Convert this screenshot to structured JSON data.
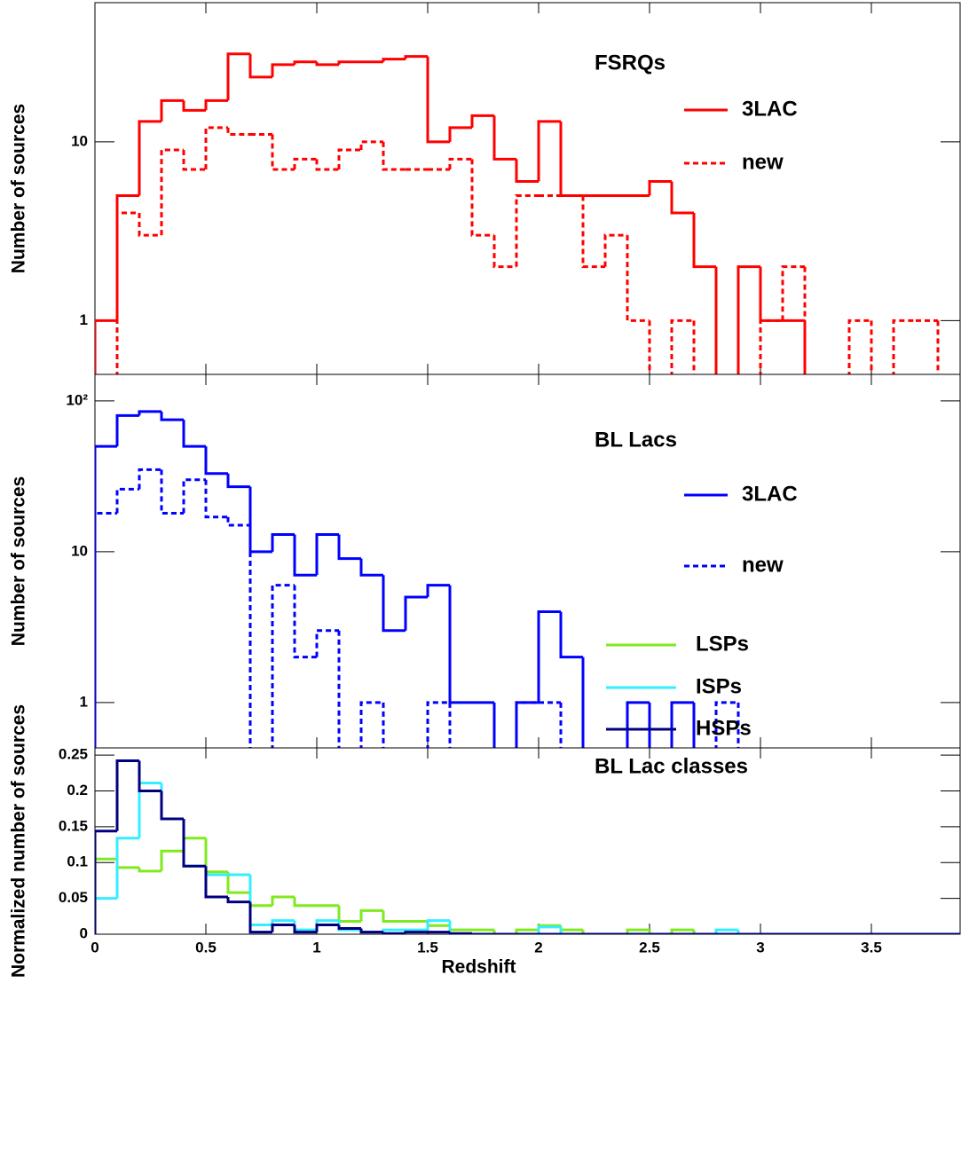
{
  "chart_data": [
    {
      "type": "histogram",
      "ylabel": "Number of sources",
      "legend_title": "FSRQs",
      "log_y": true,
      "xlim": [
        0,
        3.9
      ],
      "ylim": [
        0.5,
        60
      ],
      "yticks": [
        1,
        10
      ],
      "bins": [
        0,
        0.1,
        0.2,
        0.3,
        0.4,
        0.5,
        0.6,
        0.7,
        0.8,
        0.9,
        1,
        1.1,
        1.2,
        1.3,
        1.4,
        1.5,
        1.6,
        1.7,
        1.8,
        1.9,
        2,
        2.1,
        2.2,
        2.3,
        2.4,
        2.5,
        2.6,
        2.7,
        2.8,
        2.9,
        3,
        3.1,
        3.2,
        3.3,
        3.4,
        3.5,
        3.6,
        3.7,
        3.8,
        3.9
      ],
      "series": [
        {
          "name": "3LAC",
          "color": "#ff0000",
          "dashed": false,
          "values": [
            1,
            5,
            13,
            17,
            15,
            17,
            31,
            23,
            27,
            28,
            27,
            28,
            28,
            29,
            30,
            10,
            12,
            14,
            8,
            6,
            13,
            5,
            5,
            5,
            5,
            6,
            4,
            2,
            0,
            2,
            1,
            1,
            0,
            0,
            0,
            0,
            0,
            0,
            0
          ]
        },
        {
          "name": "new",
          "color": "#ff0000",
          "dashed": true,
          "values": [
            0,
            4,
            3,
            9,
            7,
            12,
            11,
            11,
            7,
            8,
            7,
            9,
            10,
            7,
            7,
            7,
            8,
            3,
            2,
            5,
            5,
            5,
            2,
            3,
            1,
            0,
            1,
            0,
            0,
            0,
            1,
            2,
            0,
            0,
            1,
            0,
            1,
            1,
            0
          ]
        }
      ]
    },
    {
      "type": "histogram",
      "ylabel": "Number of sources",
      "legend_title": "BL Lacs",
      "log_y": true,
      "xlim": [
        0,
        3.9
      ],
      "ylim": [
        0.5,
        150
      ],
      "yticks": [
        1,
        10,
        {
          "value": 100,
          "label": "10²"
        }
      ],
      "bins": [
        0,
        0.1,
        0.2,
        0.3,
        0.4,
        0.5,
        0.6,
        0.7,
        0.8,
        0.9,
        1,
        1.1,
        1.2,
        1.3,
        1.4,
        1.5,
        1.6,
        1.7,
        1.8,
        1.9,
        2,
        2.1,
        2.2,
        2.3,
        2.4,
        2.5,
        2.6,
        2.7,
        2.8,
        2.9,
        3,
        3.1,
        3.2,
        3.3,
        3.4,
        3.5,
        3.6,
        3.7,
        3.8,
        3.9
      ],
      "series": [
        {
          "name": "3LAC",
          "color": "#0000ff",
          "dashed": false,
          "values": [
            50,
            80,
            85,
            75,
            50,
            33,
            27,
            10,
            13,
            7,
            13,
            9,
            7,
            3,
            5,
            6,
            1,
            1,
            0,
            1,
            4,
            2,
            0,
            0,
            1,
            0,
            1,
            0,
            0,
            0,
            0,
            0,
            0,
            0,
            0,
            0,
            0,
            0,
            0
          ]
        },
        {
          "name": "new",
          "color": "#0000ff",
          "dashed": true,
          "values": [
            18,
            26,
            35,
            18,
            30,
            17,
            15,
            0,
            6,
            2,
            3,
            0,
            1,
            0,
            0,
            1,
            0,
            0,
            0,
            1,
            1,
            0,
            0,
            0,
            0,
            0,
            0,
            0,
            1,
            0,
            0,
            0,
            0,
            0,
            0,
            0,
            0,
            0,
            0
          ]
        }
      ]
    },
    {
      "type": "histogram",
      "ylabel": "Normalized number of sources",
      "legend_title": "BL Lac classes",
      "log_y": false,
      "xlabel": "Redshift",
      "xlim": [
        0,
        3.9
      ],
      "xticks": [
        0,
        0.5,
        1,
        1.5,
        2,
        2.5,
        3,
        3.5
      ],
      "ylim": [
        0,
        0.26
      ],
      "yticks": [
        0,
        0.05,
        0.1,
        0.15,
        0.2,
        0.25
      ],
      "bins": [
        0,
        0.1,
        0.2,
        0.3,
        0.4,
        0.5,
        0.6,
        0.7,
        0.8,
        0.9,
        1,
        1.1,
        1.2,
        1.3,
        1.4,
        1.5,
        1.6,
        1.7,
        1.8,
        1.9,
        2,
        2.1,
        2.2,
        2.3,
        2.4,
        2.5,
        2.6,
        2.7,
        2.8,
        2.9,
        3,
        3.1,
        3.2,
        3.3,
        3.4,
        3.5,
        3.6,
        3.7,
        3.8,
        3.9
      ],
      "series": [
        {
          "name": "LSPs",
          "color": "#7fea1e",
          "dashed": false,
          "values": [
            0.105,
            0.093,
            0.088,
            0.116,
            0.134,
            0.087,
            0.058,
            0.04,
            0.052,
            0.04,
            0.04,
            0.018,
            0.033,
            0.018,
            0.018,
            0.012,
            0.006,
            0.006,
            0,
            0.006,
            0.012,
            0.006,
            0,
            0,
            0.006,
            0,
            0.006,
            0,
            0,
            0,
            0,
            0,
            0,
            0,
            0,
            0,
            0,
            0,
            0
          ]
        },
        {
          "name": "ISPs",
          "color": "#33eeff",
          "dashed": false,
          "values": [
            0.05,
            0.134,
            0.211,
            0.161,
            0.095,
            0.083,
            0.083,
            0.013,
            0.019,
            0.006,
            0.019,
            0.006,
            0.003,
            0.006,
            0.006,
            0.019,
            0,
            0,
            0,
            0,
            0.01,
            0,
            0,
            0,
            0,
            0,
            0,
            0,
            0.006,
            0,
            0,
            0,
            0,
            0,
            0,
            0,
            0,
            0,
            0
          ]
        },
        {
          "name": "HSPs",
          "color": "#00007f",
          "dashed": false,
          "values": [
            0.144,
            0.242,
            0.2,
            0.161,
            0.095,
            0.052,
            0.045,
            0.003,
            0.013,
            0.003,
            0.013,
            0.008,
            0.003,
            0.001,
            0.003,
            0.003,
            0.001,
            0,
            0,
            0,
            0,
            0,
            0,
            0,
            0,
            0,
            0,
            0,
            0,
            0,
            0,
            0,
            0,
            0,
            0,
            0,
            0,
            0,
            0
          ]
        }
      ]
    }
  ]
}
